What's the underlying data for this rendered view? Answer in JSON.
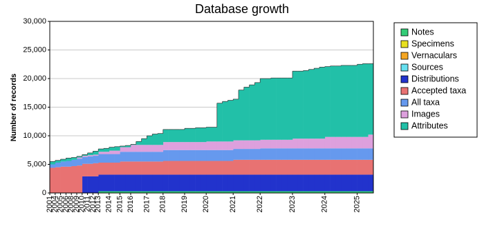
{
  "chart_data": {
    "type": "stacked-area-step",
    "title": "Database growth",
    "y_label": "Number of records",
    "categories": [
      "2001",
      "2004",
      "2005",
      "2006",
      "2008",
      "2009",
      "2010",
      "2011",
      "2012",
      "2013",
      null,
      "2014",
      null,
      "2015",
      null,
      "2016",
      null,
      null,
      "2017",
      null,
      null,
      "2018",
      null,
      null,
      null,
      "2019",
      null,
      null,
      null,
      "2020",
      null,
      null,
      null,
      null,
      "2021",
      null,
      null,
      null,
      null,
      "2022",
      null,
      null,
      null,
      null,
      null,
      "2023",
      null,
      null,
      null,
      null,
      null,
      "2024",
      null,
      null,
      null,
      null,
      null,
      "2025",
      null,
      null
    ],
    "ylim": [
      0,
      30000
    ],
    "yticks": [
      0,
      {
        "value": 5000,
        "label": "5,000"
      },
      {
        "value": 10000,
        "label": "10,000"
      },
      {
        "value": 15000,
        "label": "15,000"
      },
      {
        "value": 20000,
        "label": "20,000"
      },
      {
        "value": 25000,
        "label": "25,000"
      },
      {
        "value": 30000,
        "label": "30,000"
      }
    ],
    "grid": true,
    "series": [
      {
        "name": "Notes",
        "color": "#33cc77",
        "values": [
          0,
          0,
          0,
          0,
          0,
          0,
          0,
          0,
          0,
          300,
          300,
          300,
          300,
          300,
          300,
          300,
          300,
          300,
          300,
          300,
          300,
          300,
          300,
          300,
          300,
          300,
          300,
          300,
          300,
          300,
          300,
          300,
          300,
          300,
          300,
          300,
          300,
          300,
          300,
          300,
          300,
          300,
          300,
          300,
          300,
          300,
          300,
          300,
          300,
          300,
          300,
          300,
          300,
          300,
          300,
          300,
          300,
          300,
          300,
          300
        ]
      },
      {
        "name": "Specimens",
        "color": "#e8e020",
        "values": [
          0,
          0,
          0,
          0,
          0,
          0,
          0,
          0,
          0,
          0,
          0,
          0,
          0,
          0,
          0,
          0,
          0,
          0,
          0,
          0,
          0,
          0,
          0,
          0,
          0,
          0,
          0,
          0,
          0,
          0,
          0,
          0,
          0,
          0,
          0,
          0,
          0,
          0,
          0,
          0,
          0,
          0,
          0,
          0,
          0,
          0,
          0,
          0,
          0,
          0,
          0,
          0,
          0,
          0,
          0,
          0,
          0,
          0,
          0,
          0
        ]
      },
      {
        "name": "Vernaculars",
        "color": "#f5a623",
        "values": [
          0,
          0,
          0,
          0,
          0,
          0,
          0,
          0,
          0,
          0,
          0,
          0,
          0,
          0,
          0,
          0,
          0,
          0,
          0,
          0,
          0,
          0,
          0,
          0,
          0,
          0,
          0,
          0,
          0,
          0,
          0,
          0,
          0,
          0,
          0,
          0,
          0,
          0,
          0,
          0,
          0,
          0,
          0,
          0,
          0,
          0,
          0,
          0,
          0,
          0,
          0,
          0,
          0,
          0,
          0,
          0,
          0,
          0,
          0,
          0
        ]
      },
      {
        "name": "Sources",
        "color": "#66e0f0",
        "values": [
          0,
          0,
          0,
          0,
          0,
          0,
          0,
          0,
          0,
          0,
          0,
          0,
          0,
          0,
          0,
          0,
          0,
          0,
          0,
          0,
          0,
          0,
          0,
          0,
          0,
          0,
          0,
          0,
          0,
          0,
          0,
          0,
          0,
          0,
          0,
          0,
          0,
          0,
          0,
          0,
          0,
          0,
          0,
          0,
          0,
          0,
          0,
          0,
          0,
          0,
          0,
          0,
          0,
          0,
          0,
          0,
          0,
          0,
          0,
          0
        ]
      },
      {
        "name": "Distributions",
        "color": "#2233cc",
        "values": [
          0,
          0,
          0,
          0,
          0,
          0,
          2900,
          2900,
          2900,
          2900,
          2900,
          2900,
          2900,
          2900,
          2900,
          2900,
          2900,
          2900,
          2900,
          2900,
          2900,
          2900,
          2900,
          2900,
          2900,
          2900,
          2900,
          2900,
          2900,
          2900,
          2900,
          2900,
          2900,
          2900,
          2900,
          2900,
          2900,
          2900,
          2900,
          2900,
          2900,
          2900,
          2900,
          2900,
          2900,
          2900,
          2900,
          2900,
          2900,
          2900,
          2900,
          2900,
          2900,
          2900,
          2900,
          2900,
          2900,
          2900,
          2900,
          2900
        ]
      },
      {
        "name": "Accepted taxa",
        "color": "#e87272",
        "values": [
          4400,
          4500,
          4600,
          4600,
          4700,
          4800,
          2200,
          2200,
          2300,
          2100,
          2100,
          2100,
          2100,
          2300,
          2300,
          2300,
          2300,
          2300,
          2300,
          2300,
          2300,
          2400,
          2400,
          2400,
          2400,
          2400,
          2400,
          2400,
          2400,
          2400,
          2400,
          2400,
          2400,
          2400,
          2600,
          2600,
          2600,
          2600,
          2600,
          2600,
          2600,
          2600,
          2600,
          2600,
          2600,
          2600,
          2600,
          2600,
          2600,
          2600,
          2600,
          2600,
          2600,
          2600,
          2600,
          2600,
          2600,
          2600,
          2600,
          2600
        ]
      },
      {
        "name": "All taxa",
        "color": "#6699ee",
        "values": [
          600,
          800,
          900,
          1000,
          1100,
          1200,
          1200,
          1300,
          1300,
          1500,
          1500,
          1500,
          1500,
          1700,
          1700,
          1700,
          1700,
          1700,
          1700,
          1700,
          1700,
          1900,
          1900,
          1900,
          1900,
          1900,
          1900,
          1900,
          1900,
          1900,
          1900,
          1900,
          1900,
          1900,
          1900,
          1900,
          1900,
          1900,
          1900,
          2000,
          2000,
          2000,
          2000,
          2000,
          2000,
          2000,
          2000,
          2000,
          2000,
          2000,
          2000,
          2000,
          2000,
          2000,
          2000,
          2000,
          2000,
          2000,
          2000,
          2000
        ]
      },
      {
        "name": "Images",
        "color": "#dda0dd",
        "values": [
          0,
          0,
          0,
          0,
          0,
          200,
          200,
          200,
          200,
          400,
          400,
          600,
          600,
          800,
          800,
          1200,
          1200,
          1200,
          1200,
          1200,
          1200,
          1400,
          1400,
          1400,
          1400,
          1400,
          1400,
          1400,
          1400,
          1500,
          1500,
          1500,
          1500,
          1500,
          1500,
          1500,
          1500,
          1500,
          1500,
          1500,
          1500,
          1500,
          1500,
          1500,
          1500,
          1700,
          1700,
          1700,
          1700,
          1700,
          1700,
          2000,
          2000,
          2000,
          2000,
          2000,
          2000,
          2000,
          2000,
          2400
        ]
      },
      {
        "name": "Attributes",
        "color": "#22c0a8",
        "values": [
          500,
          400,
          400,
          500,
          400,
          200,
          200,
          400,
          600,
          500,
          600,
          600,
          700,
          200,
          300,
          100,
          600,
          1100,
          1600,
          1900,
          2000,
          2200,
          2200,
          2200,
          2200,
          2400,
          2400,
          2500,
          2500,
          2500,
          2500,
          6700,
          7000,
          7200,
          7200,
          8800,
          9300,
          9700,
          10100,
          10700,
          10700,
          10800,
          10800,
          10800,
          10800,
          11800,
          11800,
          11900,
          12100,
          12300,
          12500,
          12300,
          12400,
          12400,
          12500,
          12500,
          12500,
          12700,
          12800,
          12400
        ]
      }
    ]
  }
}
